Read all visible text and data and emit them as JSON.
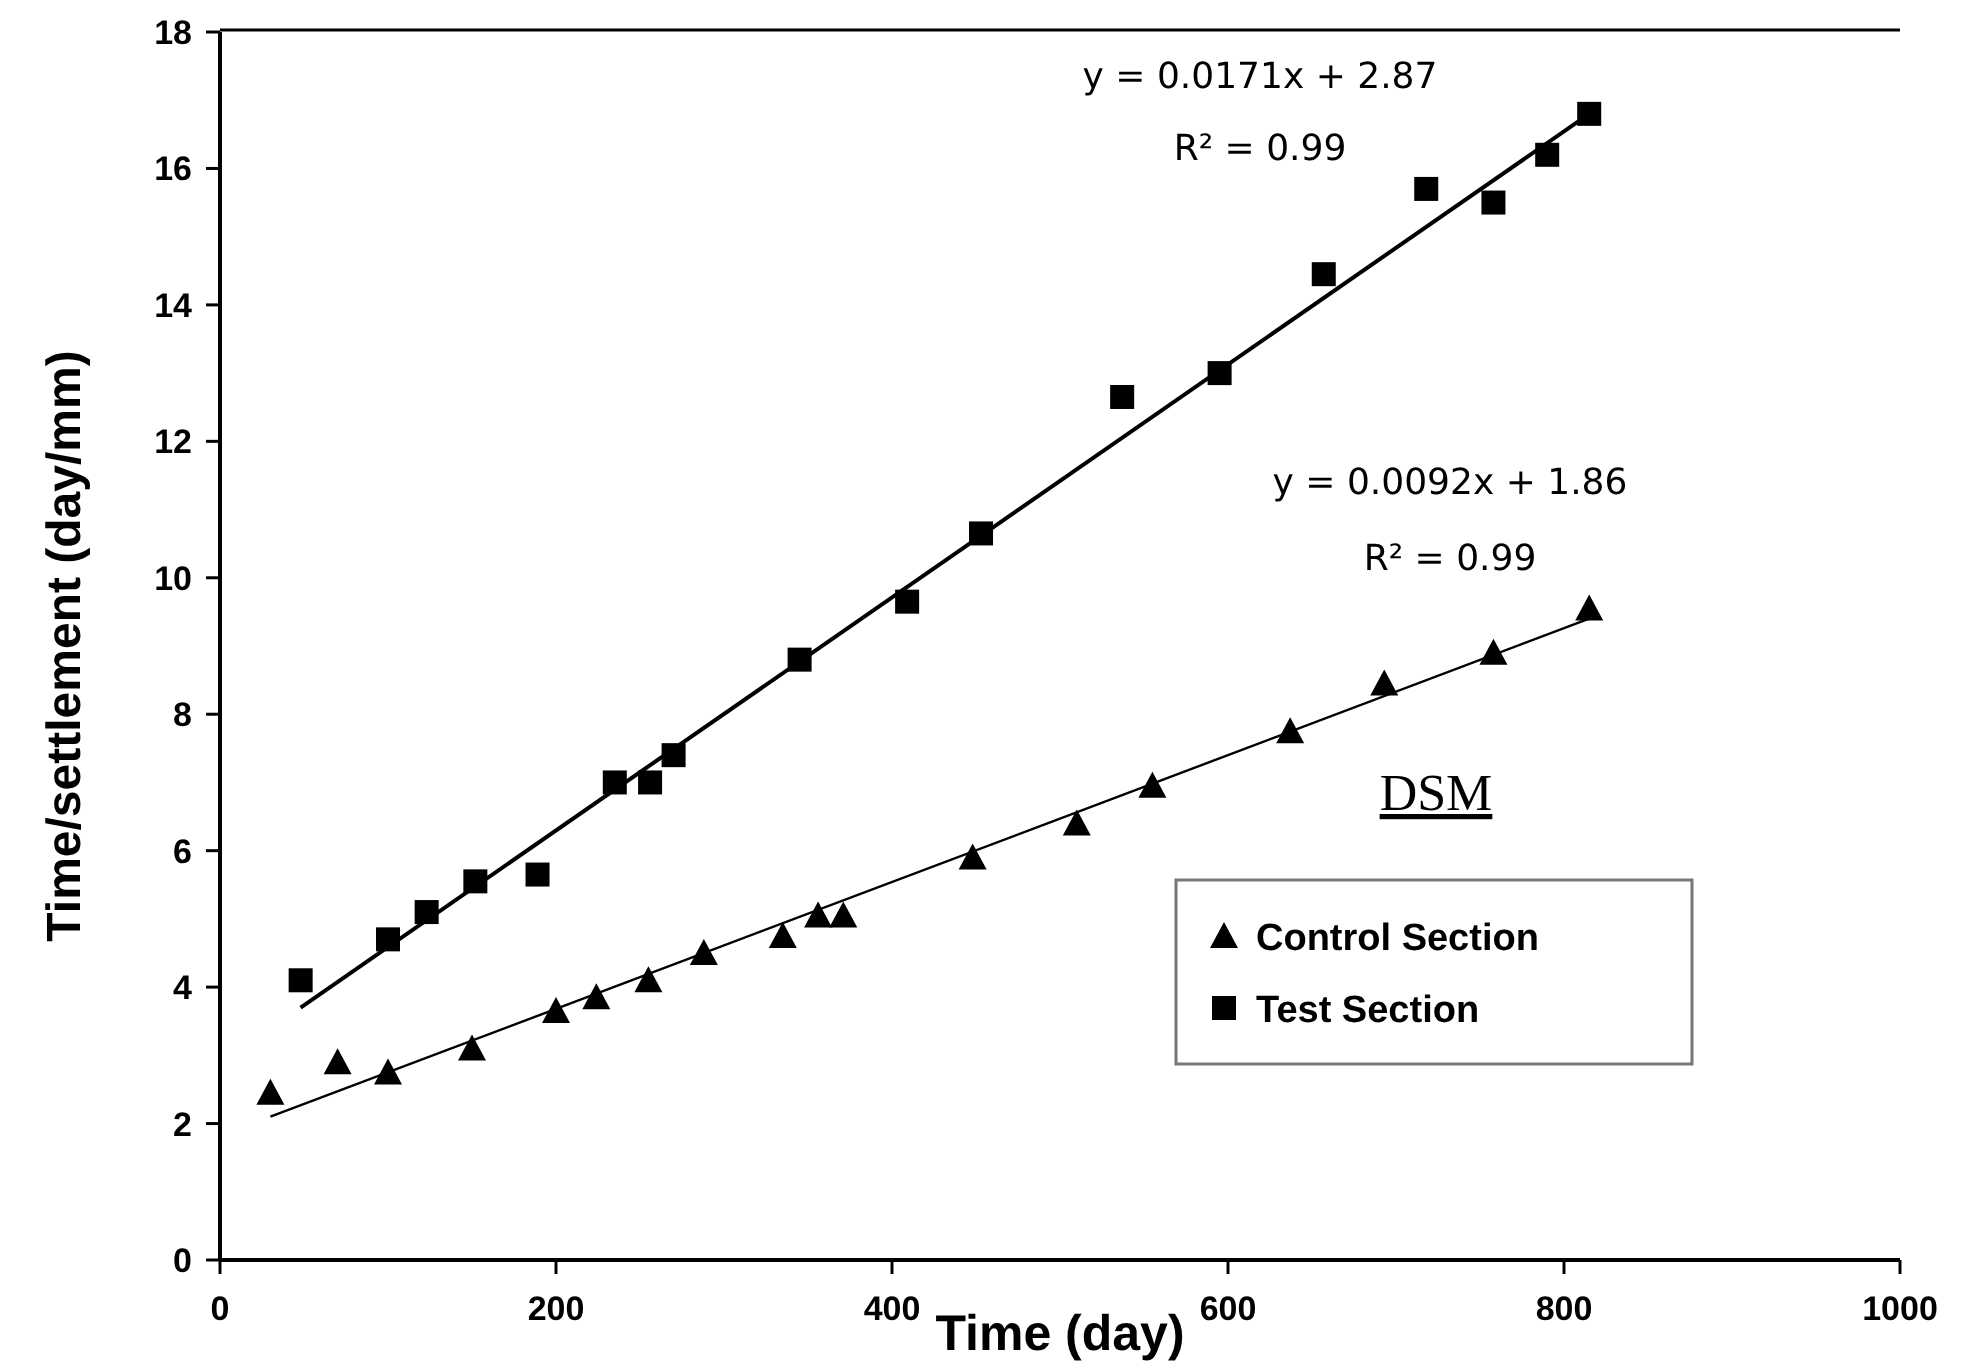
{
  "chart_data": {
    "type": "scatter",
    "xlabel": "Time (day)",
    "ylabel": "Time/settlement (day/mm)",
    "xlim": [
      0,
      1000
    ],
    "ylim": [
      0,
      18
    ],
    "xticks": [
      0,
      200,
      400,
      600,
      800,
      1000
    ],
    "yticks": [
      0,
      2,
      4,
      6,
      8,
      10,
      12,
      14,
      16,
      18
    ],
    "grid": false,
    "legend": "bottom right",
    "series": [
      {
        "name": "Control Section",
        "marker": "triangle",
        "color": "#000000",
        "x": [
          30,
          70,
          100,
          150,
          200,
          224,
          255,
          288,
          335,
          356,
          371,
          448,
          510,
          555,
          637,
          693,
          758,
          815
        ],
        "values": [
          2.45,
          2.9,
          2.75,
          3.1,
          3.65,
          3.85,
          4.1,
          4.5,
          4.75,
          5.05,
          5.05,
          5.9,
          6.4,
          6.95,
          7.75,
          8.45,
          8.9,
          9.55
        ]
      },
      {
        "name": "Test Section",
        "marker": "square",
        "color": "#000000",
        "x": [
          48,
          100,
          123,
          152,
          189,
          235,
          256,
          270,
          345,
          409,
          453,
          537,
          595,
          657,
          718,
          758,
          790,
          815
        ],
        "values": [
          4.1,
          4.7,
          5.1,
          5.55,
          5.65,
          7.0,
          7.0,
          7.4,
          8.8,
          9.65,
          10.65,
          12.65,
          13.0,
          14.45,
          15.7,
          15.5,
          16.2,
          16.8
        ]
      },
      {
        "type": "line",
        "marker": "none",
        "color": "#000000",
        "x": [
          30,
          815
        ],
        "values": [
          2.1,
          9.4
        ]
      },
      {
        "type": "line",
        "marker": "none",
        "color": "#000000",
        "x": [
          48,
          815
        ],
        "values": [
          3.7,
          16.8
        ]
      }
    ],
    "annotations": [
      "y = 0.0171x + 2.87",
      "R² = 0.99",
      "y = 0.0092x + 1.86",
      "R² = 0.99",
      "DSM"
    ]
  }
}
